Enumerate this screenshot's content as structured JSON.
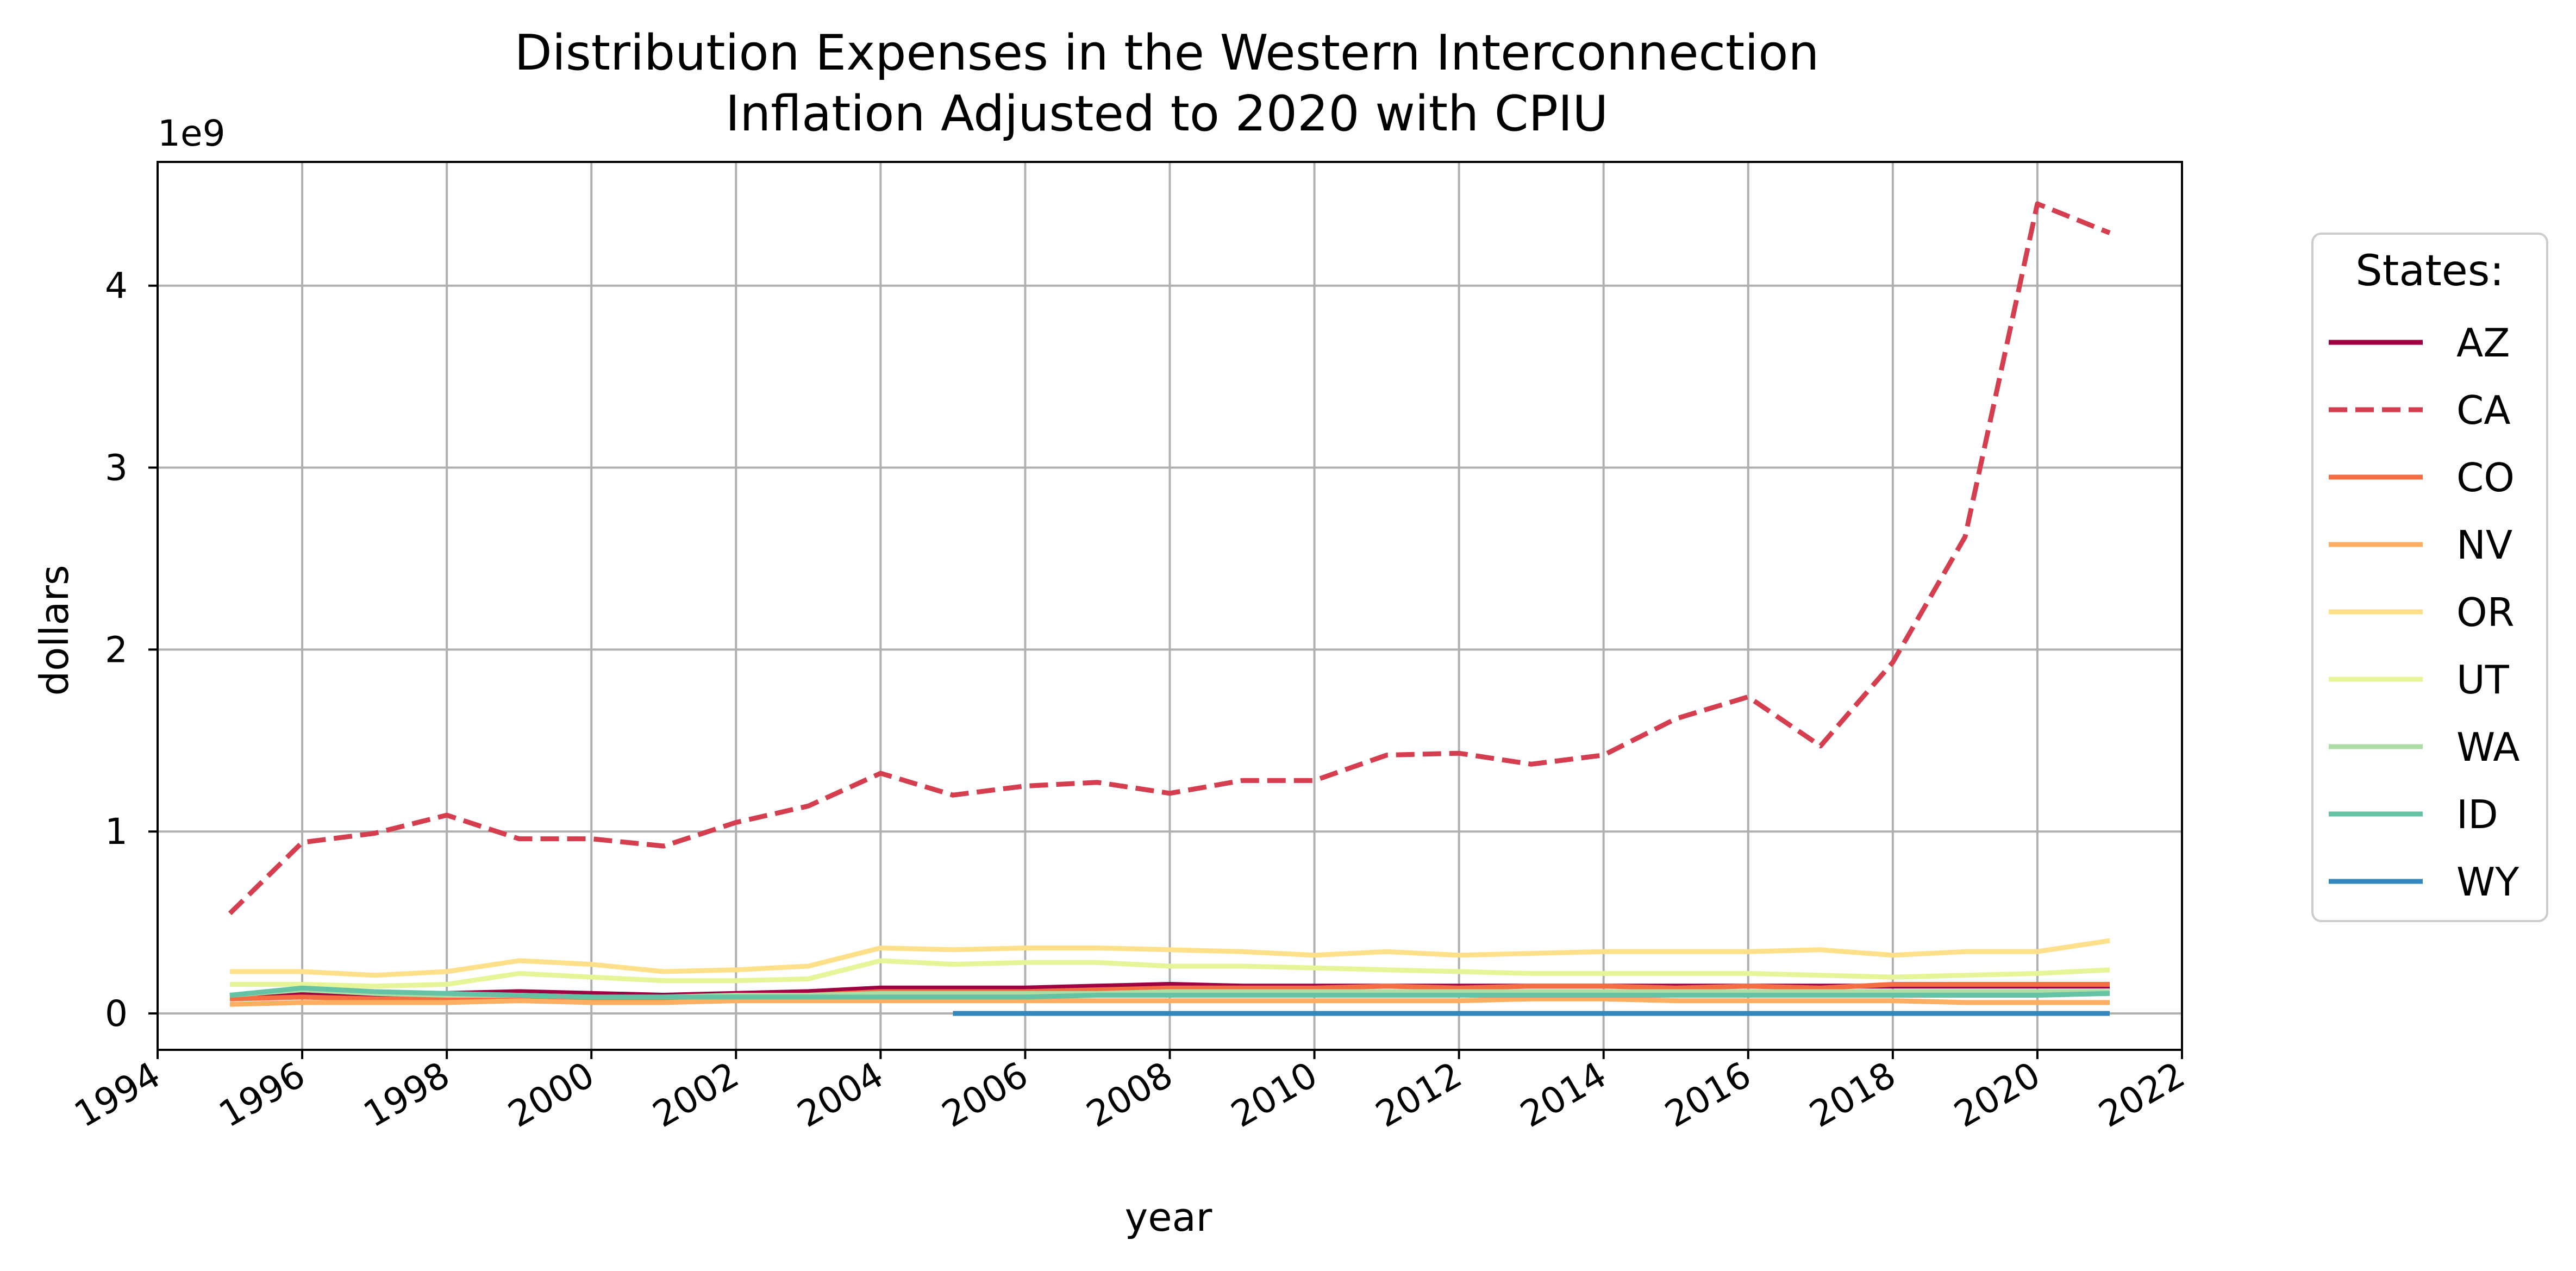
{
  "chart_data": {
    "type": "line",
    "title": "Distribution Expenses in the Western Interconnection",
    "subtitle": "Inflation Adjusted to 2020 with CPIU",
    "xlabel": "year",
    "ylabel": "dollars",
    "y_offset_label": "1e9",
    "xlim": [
      1994,
      2022
    ],
    "ylim": [
      -0.2,
      4.68
    ],
    "x_ticks": [
      1994,
      1996,
      1998,
      2000,
      2002,
      2004,
      2006,
      2008,
      2010,
      2012,
      2014,
      2016,
      2018,
      2020,
      2022
    ],
    "x_tick_labels": [
      "1994",
      "1996",
      "1998",
      "2000",
      "2002",
      "2004",
      "2006",
      "2008",
      "2010",
      "2012",
      "2014",
      "2016",
      "2018",
      "2020",
      "2022"
    ],
    "y_ticks": [
      0,
      1,
      2,
      3,
      4
    ],
    "y_tick_labels": [
      "0",
      "1",
      "2",
      "3",
      "4"
    ],
    "grid": true,
    "legend_title": "States:",
    "legend_position": "outside-right",
    "series": [
      {
        "name": "AZ",
        "color": "#9e0142",
        "dash": false,
        "x": [
          1995,
          1996,
          1997,
          1998,
          1999,
          2000,
          2001,
          2002,
          2003,
          2004,
          2005,
          2006,
          2007,
          2008,
          2009,
          2010,
          2011,
          2012,
          2013,
          2014,
          2015,
          2016,
          2017,
          2018,
          2019,
          2020,
          2021
        ],
        "y": [
          0.09,
          0.11,
          0.1,
          0.11,
          0.12,
          0.11,
          0.1,
          0.11,
          0.12,
          0.14,
          0.14,
          0.14,
          0.15,
          0.16,
          0.15,
          0.15,
          0.15,
          0.15,
          0.15,
          0.15,
          0.15,
          0.15,
          0.15,
          0.15,
          0.15,
          0.15,
          0.15
        ]
      },
      {
        "name": "CA",
        "color": "#d53e4f",
        "dash": true,
        "x": [
          1995,
          1996,
          1997,
          1998,
          1999,
          2000,
          2001,
          2002,
          2003,
          2004,
          2005,
          2006,
          2007,
          2008,
          2009,
          2010,
          2011,
          2012,
          2013,
          2014,
          2015,
          2016,
          2017,
          2018,
          2019,
          2020,
          2021
        ],
        "y": [
          0.55,
          0.94,
          0.99,
          1.09,
          0.96,
          0.96,
          0.92,
          1.05,
          1.14,
          1.32,
          1.2,
          1.25,
          1.27,
          1.21,
          1.28,
          1.28,
          1.42,
          1.43,
          1.37,
          1.42,
          1.62,
          1.74,
          1.47,
          1.93,
          2.62,
          4.45,
          4.29
        ]
      },
      {
        "name": "CO",
        "color": "#f46d43",
        "dash": false,
        "x": [
          1995,
          1996,
          1997,
          1998,
          1999,
          2000,
          2001,
          2002,
          2003,
          2004,
          2005,
          2006,
          2007,
          2008,
          2009,
          2010,
          2011,
          2012,
          2013,
          2014,
          2015,
          2016,
          2017,
          2018,
          2019,
          2020,
          2021
        ],
        "y": [
          0.08,
          0.09,
          0.08,
          0.08,
          0.09,
          0.08,
          0.08,
          0.09,
          0.1,
          0.12,
          0.12,
          0.12,
          0.13,
          0.14,
          0.14,
          0.14,
          0.15,
          0.14,
          0.15,
          0.15,
          0.14,
          0.15,
          0.14,
          0.16,
          0.16,
          0.16,
          0.16
        ]
      },
      {
        "name": "NV",
        "color": "#fdae61",
        "dash": false,
        "x": [
          1995,
          1996,
          1997,
          1998,
          1999,
          2000,
          2001,
          2002,
          2003,
          2004,
          2005,
          2006,
          2007,
          2008,
          2009,
          2010,
          2011,
          2012,
          2013,
          2014,
          2015,
          2016,
          2017,
          2018,
          2019,
          2020,
          2021
        ],
        "y": [
          0.05,
          0.06,
          0.06,
          0.06,
          0.07,
          0.06,
          0.06,
          0.07,
          0.07,
          0.07,
          0.07,
          0.07,
          0.07,
          0.07,
          0.07,
          0.07,
          0.07,
          0.07,
          0.08,
          0.08,
          0.07,
          0.07,
          0.07,
          0.07,
          0.06,
          0.06,
          0.06
        ]
      },
      {
        "name": "OR",
        "color": "#fee08b",
        "dash": false,
        "x": [
          1995,
          1996,
          1997,
          1998,
          1999,
          2000,
          2001,
          2002,
          2003,
          2004,
          2005,
          2006,
          2007,
          2008,
          2009,
          2010,
          2011,
          2012,
          2013,
          2014,
          2015,
          2016,
          2017,
          2018,
          2019,
          2020,
          2021
        ],
        "y": [
          0.23,
          0.23,
          0.21,
          0.23,
          0.29,
          0.27,
          0.23,
          0.24,
          0.26,
          0.36,
          0.35,
          0.36,
          0.36,
          0.35,
          0.34,
          0.32,
          0.34,
          0.32,
          0.33,
          0.34,
          0.34,
          0.34,
          0.35,
          0.32,
          0.34,
          0.34,
          0.4
        ]
      },
      {
        "name": "UT",
        "color": "#e6f598",
        "dash": false,
        "x": [
          1995,
          1996,
          1997,
          1998,
          1999,
          2000,
          2001,
          2002,
          2003,
          2004,
          2005,
          2006,
          2007,
          2008,
          2009,
          2010,
          2011,
          2012,
          2013,
          2014,
          2015,
          2016,
          2017,
          2018,
          2019,
          2020,
          2021
        ],
        "y": [
          0.16,
          0.16,
          0.15,
          0.16,
          0.22,
          0.2,
          0.18,
          0.18,
          0.19,
          0.29,
          0.27,
          0.28,
          0.28,
          0.26,
          0.26,
          0.25,
          0.24,
          0.23,
          0.22,
          0.22,
          0.22,
          0.22,
          0.21,
          0.2,
          0.21,
          0.22,
          0.24
        ]
      },
      {
        "name": "WA",
        "color": "#abdda4",
        "dash": false,
        "x": [
          1995,
          1996,
          1997,
          1998,
          1999,
          2000,
          2001,
          2002,
          2003,
          2004,
          2005,
          2006,
          2007,
          2008,
          2009,
          2010,
          2011,
          2012,
          2013,
          2014,
          2015,
          2016,
          2017,
          2018,
          2019,
          2020,
          2021
        ],
        "y": [
          0.1,
          0.13,
          0.11,
          0.1,
          0.1,
          0.09,
          0.09,
          0.1,
          0.1,
          0.11,
          0.11,
          0.11,
          0.11,
          0.12,
          0.12,
          0.12,
          0.12,
          0.12,
          0.12,
          0.12,
          0.12,
          0.12,
          0.12,
          0.12,
          0.12,
          0.12,
          0.12
        ]
      },
      {
        "name": "ID",
        "color": "#66c2a5",
        "dash": false,
        "x": [
          1995,
          1996,
          1997,
          1998,
          1999,
          2000,
          2001,
          2002,
          2003,
          2004,
          2005,
          2006,
          2007,
          2008,
          2009,
          2010,
          2011,
          2012,
          2013,
          2014,
          2015,
          2016,
          2017,
          2018,
          2019,
          2020,
          2021
        ],
        "y": [
          0.1,
          0.14,
          0.12,
          0.11,
          0.1,
          0.09,
          0.09,
          0.09,
          0.09,
          0.09,
          0.09,
          0.09,
          0.1,
          0.1,
          0.1,
          0.1,
          0.1,
          0.1,
          0.1,
          0.1,
          0.1,
          0.1,
          0.1,
          0.1,
          0.1,
          0.1,
          0.11
        ]
      },
      {
        "name": "WY",
        "color": "#3288bd",
        "dash": false,
        "x": [
          2005,
          2006,
          2007,
          2008,
          2009,
          2010,
          2011,
          2012,
          2013,
          2014,
          2015,
          2016,
          2017,
          2018,
          2019,
          2020,
          2021
        ],
        "y": [
          0.0,
          0.0,
          0.0,
          0.0,
          0.0,
          0.0,
          0.0,
          0.0,
          0.0,
          0.0,
          0.0,
          0.0,
          0.0,
          0.0,
          0.0,
          0.0,
          0.0
        ]
      }
    ]
  }
}
